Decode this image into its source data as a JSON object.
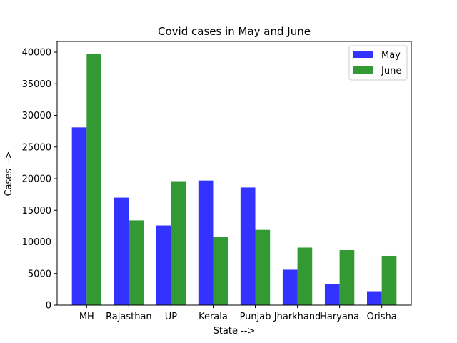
{
  "chart_data": {
    "type": "bar",
    "title": "Covid cases in May and June",
    "xlabel": "State -->",
    "ylabel": "Cases -->",
    "categories": [
      "MH",
      "Rajasthan",
      "UP",
      "Kerala",
      "Punjab",
      "Jharkhand",
      "Haryana",
      "Orisha"
    ],
    "series": [
      {
        "name": "May",
        "color": "#3333ff",
        "values": [
          28100,
          17000,
          12600,
          19700,
          18600,
          5600,
          3300,
          2200
        ]
      },
      {
        "name": "June",
        "color": "#339933",
        "values": [
          39700,
          13400,
          19600,
          10800,
          11900,
          9100,
          8700,
          7800
        ]
      }
    ],
    "ylim": [
      0,
      41700
    ],
    "yticks": [
      0,
      5000,
      10000,
      15000,
      20000,
      25000,
      30000,
      35000,
      40000
    ],
    "legend": "top-right",
    "grid": false
  }
}
